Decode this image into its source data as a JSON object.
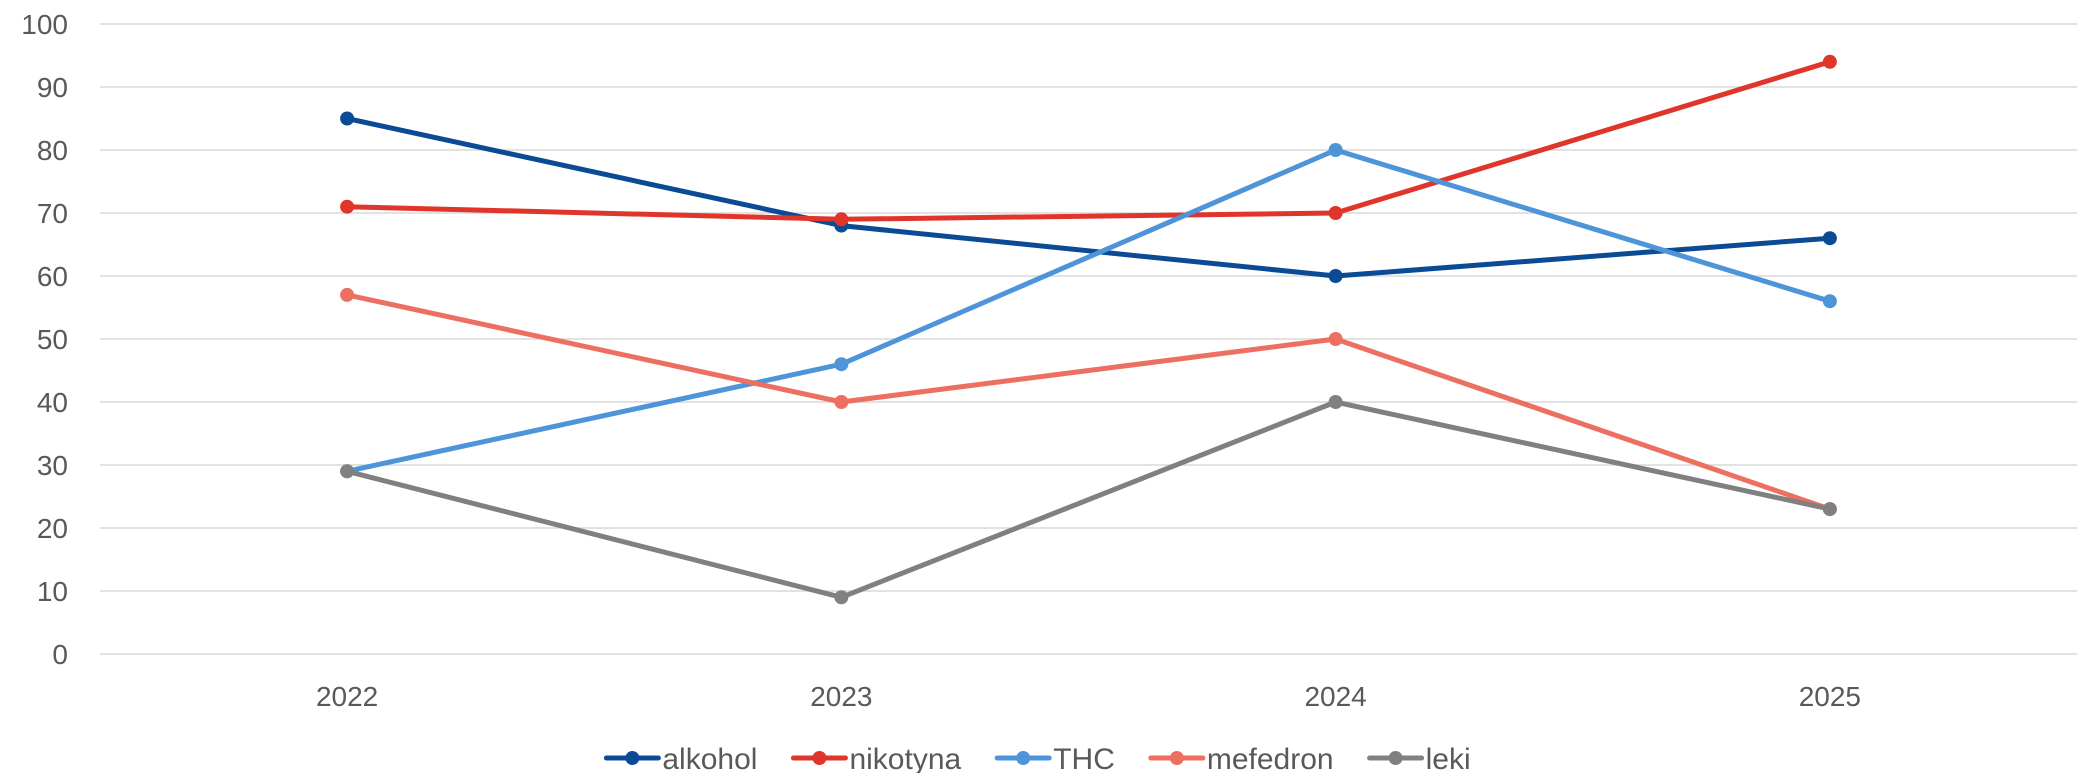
{
  "chart_data": {
    "type": "line",
    "title": "",
    "xlabel": "",
    "ylabel": "",
    "categories": [
      "2022",
      "2023",
      "2024",
      "2025"
    ],
    "ylim": [
      0,
      100
    ],
    "yticks": [
      0,
      10,
      20,
      30,
      40,
      50,
      60,
      70,
      80,
      90,
      100
    ],
    "grid": true,
    "legend_position": "bottom",
    "series": [
      {
        "name": "alkohol",
        "color": "#0b4a94",
        "values": [
          85,
          68,
          60,
          66
        ]
      },
      {
        "name": "nikotyna",
        "color": "#e0352b",
        "values": [
          71,
          69,
          70,
          94
        ]
      },
      {
        "name": "THC",
        "color": "#4e94d9",
        "values": [
          29,
          46,
          80,
          56
        ]
      },
      {
        "name": "mefedron",
        "color": "#ec6f62",
        "values": [
          57,
          40,
          50,
          23
        ]
      },
      {
        "name": "leki",
        "color": "#808080",
        "values": [
          29,
          9,
          40,
          23
        ]
      }
    ]
  }
}
